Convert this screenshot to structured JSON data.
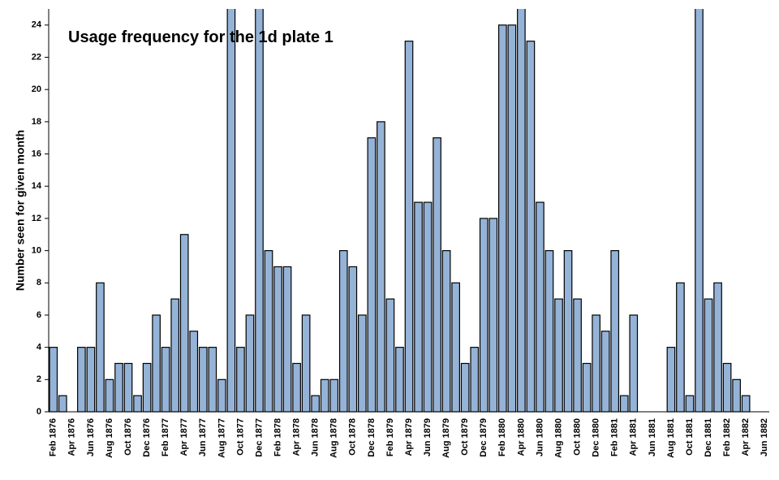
{
  "chart_data": {
    "type": "bar",
    "title": "Usage frequency for the 1d plate 1",
    "y_label": "Number seen for given month",
    "categories": [
      "Feb 1876",
      null,
      "Apr 1876",
      null,
      "Jun 1876",
      null,
      "Aug 1876",
      null,
      "Oct 1876",
      null,
      "Dec 1876",
      null,
      "Feb 1877",
      null,
      "Apr 1877",
      null,
      "Jun 1877",
      null,
      "Aug 1877",
      null,
      "Oct 1877",
      null,
      "Dec 1877",
      null,
      "Feb 1878",
      null,
      "Apr 1878",
      null,
      "Jun 1878",
      null,
      "Aug 1878",
      null,
      "Oct 1878",
      null,
      "Dec 1878",
      null,
      "Feb 1879",
      null,
      "Apr 1879",
      null,
      "Jun 1879",
      null,
      "Aug 1879",
      null,
      "Oct 1879",
      null,
      "Dec 1879",
      null,
      "Feb 1880",
      null,
      "Apr 1880",
      null,
      "Jun 1880",
      null,
      "Aug 1880",
      null,
      "Oct 1880",
      null,
      "Dec 1880",
      null,
      "Feb 1881",
      null,
      "Apr 1881",
      null,
      "Jun 1881",
      null,
      "Aug 1881",
      null,
      "Oct 1881",
      null,
      "Dec 1881",
      null,
      "Feb 1882",
      null,
      "Apr 1882",
      null,
      "Jun 1882"
    ],
    "values": [
      4,
      1,
      0,
      4,
      4,
      8,
      2,
      3,
      3,
      1,
      3,
      6,
      4,
      7,
      11,
      5,
      4,
      4,
      2,
      26,
      4,
      6,
      26,
      10,
      9,
      9,
      3,
      6,
      1,
      2,
      2,
      10,
      9,
      6,
      17,
      18,
      7,
      4,
      23,
      13,
      13,
      17,
      10,
      8,
      3,
      4,
      12,
      12,
      24,
      24,
      26,
      23,
      13,
      10,
      7,
      10,
      7,
      3,
      6,
      5,
      10,
      1,
      6,
      0,
      0,
      0,
      4,
      8,
      1,
      26,
      7,
      8,
      3,
      2,
      1,
      0,
      0
    ],
    "color": "#95b3d7",
    "ylim": [
      0,
      25
    ],
    "yticks": [
      0,
      2,
      4,
      6,
      8,
      10,
      12,
      14,
      16,
      18,
      20,
      22,
      24
    ],
    "grid": false
  }
}
